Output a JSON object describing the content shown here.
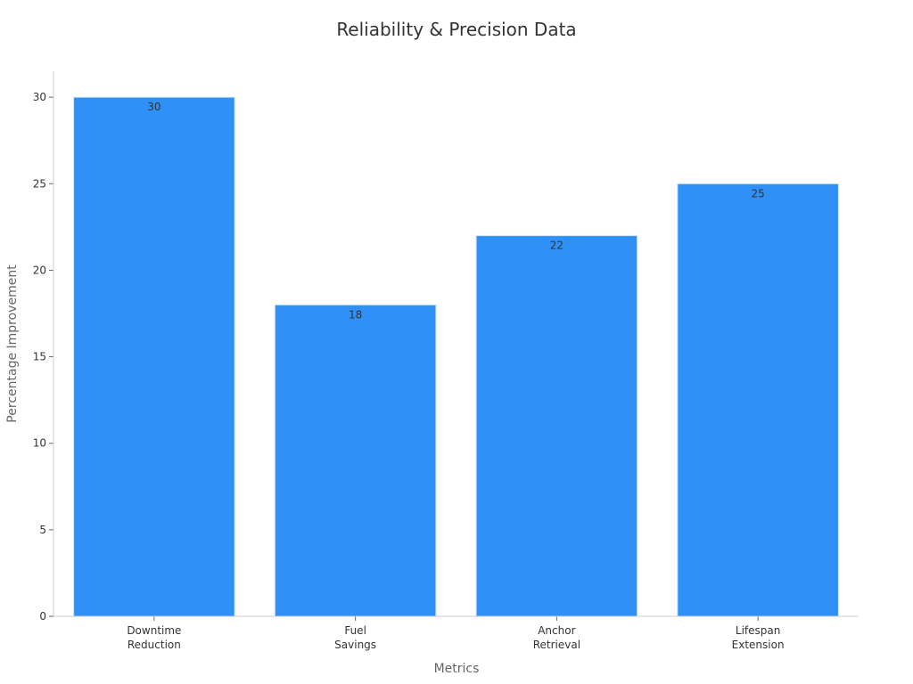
{
  "chart_data": {
    "type": "bar",
    "title": "Reliability & Precision Data",
    "xlabel": "Metrics",
    "ylabel": "Percentage Improvement",
    "categories": [
      [
        "Downtime",
        "Reduction"
      ],
      [
        "Fuel",
        "Savings"
      ],
      [
        "Anchor",
        "Retrieval"
      ],
      [
        "Lifespan",
        "Extension"
      ]
    ],
    "values": [
      30,
      18,
      22,
      25
    ],
    "ylim": [
      0,
      31.5
    ],
    "yticks": [
      0,
      5,
      10,
      15,
      20,
      25,
      30
    ],
    "grid": false,
    "legend": "none",
    "colors": {
      "bar": "#2f91f8",
      "bar_edge": "#d0e6fb",
      "axis": "#cccccc",
      "text": "#333333",
      "axis_title": "#666666"
    }
  }
}
